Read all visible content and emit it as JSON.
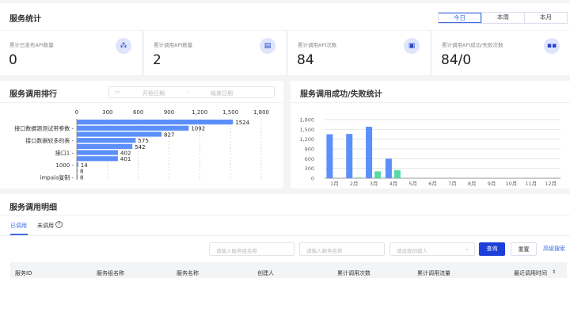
{
  "header": {
    "title": "服务统计",
    "ranges": [
      "今日",
      "本周",
      "本月"
    ]
  },
  "cards": [
    {
      "label": "累计已发布API数量",
      "value": "0",
      "icon": "cluster-icon"
    },
    {
      "label": "累计调用API数量",
      "value": "2",
      "icon": "list-icon"
    },
    {
      "label": "累计调用API次数",
      "value": "84",
      "icon": "chip-icon"
    },
    {
      "label": "累计调用API成功/失败次数",
      "value": "84/0",
      "icon": "grid-icon"
    }
  ],
  "ranking": {
    "title": "服务调用排行",
    "start_placeholder": "开始日期",
    "sep": "-",
    "end_placeholder": "结束日期"
  },
  "stats": {
    "title": "服务调用成功/失败统计"
  },
  "detail": {
    "title": "服务调用明细",
    "tabs": [
      "已调用",
      "未调用"
    ],
    "inputs": [
      "请输入服务组名称",
      "请输入服务名称",
      "请选择创建人"
    ],
    "query": "查询",
    "reset": "重置",
    "advanced": "高级搜索",
    "columns": [
      "服务ID",
      "服务组名称",
      "服务名称",
      "创建人",
      "累计调用次数",
      "累计调用流量",
      "最近调用时间"
    ]
  },
  "chart_data": [
    {
      "type": "bar",
      "orientation": "horizontal",
      "categories": [
        "",
        "接口数据源测试带参数",
        "",
        "接口数据较多的表",
        "",
        "接口1",
        "",
        "1000",
        "",
        "impala复制"
      ],
      "values": [
        1524,
        1092,
        827,
        575,
        542,
        402,
        401,
        14,
        8,
        8
      ],
      "xlim": [
        0,
        1800
      ],
      "xticks": [
        0,
        300,
        600,
        900,
        1200,
        1500,
        1800
      ],
      "color": "#5b8ff9",
      "grid": "vertical-dashed"
    },
    {
      "type": "bar",
      "categories": [
        "1月",
        "2月",
        "3月",
        "4月",
        "5月",
        "6月",
        "7月",
        "8月",
        "9月",
        "10月",
        "11月",
        "12月"
      ],
      "series": [
        {
          "values": [
            1350,
            1360,
            1580,
            600,
            0,
            0,
            0,
            0,
            0,
            0,
            0,
            0
          ],
          "color": "#5b8ff9"
        },
        {
          "values": [
            0,
            20,
            210,
            250,
            0,
            0,
            0,
            0,
            0,
            0,
            0,
            0
          ],
          "color": "#5ad8a6"
        }
      ],
      "ylim": [
        0,
        1800
      ],
      "yticks": [
        0,
        300,
        600,
        900,
        1200,
        1500,
        1800
      ],
      "grid": "horizontal"
    }
  ]
}
